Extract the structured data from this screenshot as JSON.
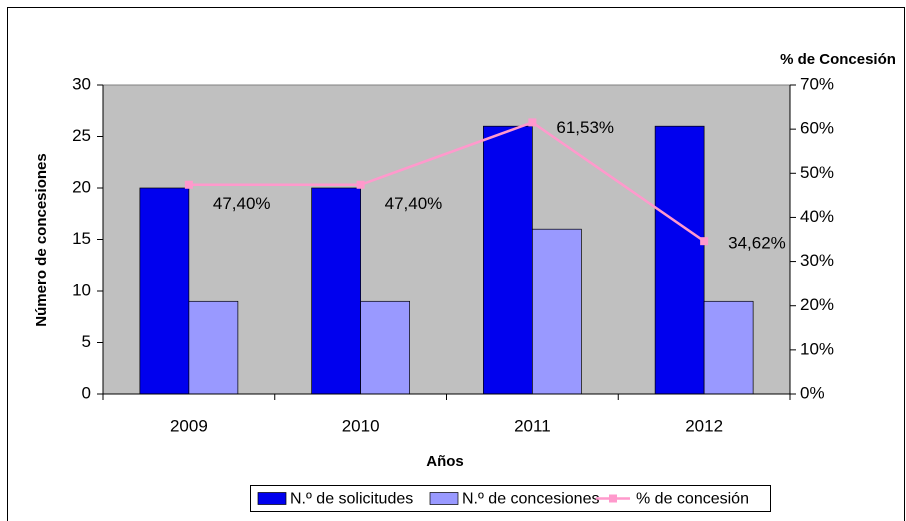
{
  "chart_data": {
    "type": "bar_line",
    "categories": [
      "2009",
      "2010",
      "2011",
      "2012"
    ],
    "series": [
      {
        "name": "N.º de solicitudes",
        "color": "#0000ee",
        "values": [
          20,
          20,
          26,
          26
        ]
      },
      {
        "name": "N.º de concesiones",
        "color": "#9999ff",
        "values": [
          9,
          9,
          16,
          9
        ]
      },
      {
        "name": "% de concesión",
        "color": "#ff99cc",
        "axis": "y2",
        "values": [
          47.4,
          47.4,
          61.53,
          34.62
        ],
        "value_labels": [
          "47,40%",
          "47,40%",
          "61,53%",
          "34,62%"
        ]
      }
    ],
    "ylabel": "Número de concesiones",
    "y2label": "% de Concesión",
    "xlabel": "Años",
    "ylim": [
      0,
      30
    ],
    "yticks": [
      0,
      5,
      10,
      15,
      20,
      25,
      30
    ],
    "y2lim": [
      0,
      70
    ],
    "y2ticks": [
      {
        "value": 0,
        "label": "0%"
      },
      {
        "value": 10,
        "label": "10%"
      },
      {
        "value": 20,
        "label": "20%"
      },
      {
        "value": 30,
        "label": "30%"
      },
      {
        "value": 40,
        "label": "40%"
      },
      {
        "value": 50,
        "label": "50%"
      },
      {
        "value": 60,
        "label": "60%"
      },
      {
        "value": 70,
        "label": "70%"
      }
    ],
    "legend": "bottom",
    "plot_background": "#c0c0c0"
  }
}
